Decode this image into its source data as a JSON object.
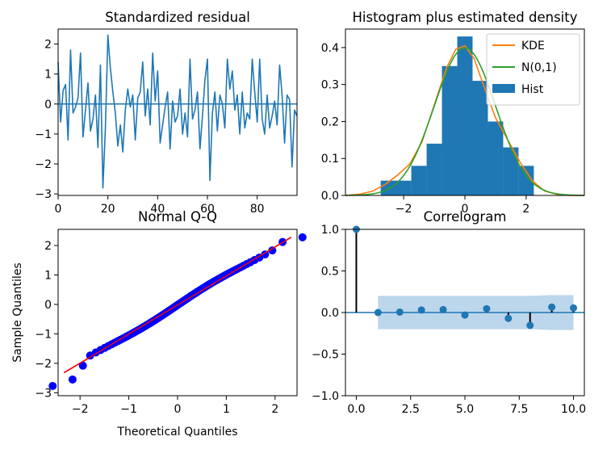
{
  "chart_data": [
    {
      "panel": "residual",
      "type": "line",
      "title": "Standardized residual",
      "xlim": [
        0,
        96
      ],
      "ylim": [
        -3.05,
        2.5
      ],
      "xticks": [
        0,
        20,
        40,
        60,
        80
      ],
      "yticks": [
        -3,
        -2,
        -1,
        0,
        1,
        2
      ],
      "xtick_labels": [
        "0",
        "20",
        "40",
        "60",
        "80"
      ],
      "ytick_labels": [
        "−3",
        "−2",
        "−1",
        "0",
        "1",
        "2"
      ],
      "hline": 0,
      "color": "#1f77b4",
      "values": [
        1.4,
        -0.6,
        0.45,
        0.65,
        -1.2,
        1.8,
        -0.3,
        -0.1,
        0.2,
        1.7,
        -1.1,
        -0.2,
        0.7,
        -0.9,
        -0.5,
        0.3,
        -1.45,
        1.3,
        -2.8,
        -0.8,
        2.3,
        1.2,
        0.4,
        -0.3,
        -1.4,
        -0.7,
        -1.6,
        -0.2,
        0.5,
        -0.1,
        0.3,
        -1.2,
        0.2,
        0.4,
        1.4,
        -0.4,
        0.5,
        -0.7,
        1.7,
        0.1,
        1.1,
        -1.3,
        -0.7,
        -0.1,
        0.4,
        -1.5,
        0.1,
        -0.6,
        -0.4,
        0.5,
        -1.0,
        -0.3,
        -1.1,
        1.5,
        -0.5,
        -0.2,
        0.4,
        -1.5,
        -0.4,
        0.8,
        1.5,
        -2.55,
        -0.3,
        0.4,
        -0.9,
        0.3,
        0.0,
        -0.8,
        1.5,
        0.5,
        1.1,
        -0.2,
        0.3,
        -1.0,
        0.4,
        -0.8,
        -0.3,
        -0.5,
        1.5,
        0.4,
        -0.6,
        1.5,
        -0.5,
        -1.0,
        0.3,
        -0.8,
        -0.4,
        0.1,
        -0.7,
        1.3,
        0.3,
        -1.3,
        0.3,
        0.15,
        -2.1,
        -0.2,
        -0.4
      ]
    },
    {
      "panel": "histogram",
      "type": "bar",
      "title": "Histogram plus estimated density",
      "xlim": [
        -3.9,
        3.9
      ],
      "ylim": [
        0,
        0.45
      ],
      "xticks": [
        -2,
        0,
        2
      ],
      "yticks": [
        0.0,
        0.1,
        0.2,
        0.3,
        0.4
      ],
      "xtick_labels": [
        "−2",
        "0",
        "2"
      ],
      "ytick_labels": [
        "0.0",
        "0.1",
        "0.2",
        "0.3",
        "0.4"
      ],
      "bin_edges": [
        -2.75,
        -1.75,
        -1.25,
        -0.75,
        -0.25,
        0.25,
        0.75,
        1.25,
        1.75,
        2.25
      ],
      "bin_heights": [
        0.04,
        0.08,
        0.14,
        0.35,
        0.43,
        0.31,
        0.2,
        0.13,
        0.08
      ],
      "legend": {
        "position": "top-right",
        "entries": [
          "KDE",
          "N(0,1)",
          "Hist"
        ]
      },
      "colors": {
        "hist": "#1f77b4",
        "kde": "#ff7f0e",
        "normal": "#2ca02c"
      },
      "kde": {
        "x": [
          -3.9,
          -3.4,
          -3.0,
          -2.6,
          -2.2,
          -1.8,
          -1.4,
          -1.0,
          -0.6,
          -0.3,
          0.0,
          0.3,
          0.6,
          1.0,
          1.4,
          1.8,
          2.2,
          2.6,
          3.0,
          3.4,
          3.9
        ],
        "y": [
          0.0,
          0.004,
          0.012,
          0.03,
          0.055,
          0.085,
          0.145,
          0.245,
          0.345,
          0.395,
          0.405,
          0.37,
          0.3,
          0.21,
          0.15,
          0.09,
          0.04,
          0.012,
          0.003,
          0.0,
          0.0
        ]
      }
    },
    {
      "panel": "qq",
      "type": "scatter",
      "title": "Normal Q-Q",
      "xlabel": "Theoretical Quantiles",
      "ylabel": "Sample Quantiles",
      "xlim": [
        -2.45,
        2.45
      ],
      "ylim": [
        -3.1,
        2.55
      ],
      "xticks": [
        -2,
        -1,
        0,
        1,
        2
      ],
      "yticks": [
        -3,
        -2,
        -1,
        0,
        1,
        2
      ],
      "xtick_labels": [
        "−2",
        "−1",
        "0",
        "1",
        "2"
      ],
      "ytick_labels": [
        "−3",
        "−2",
        "−1",
        "0",
        "1",
        "2"
      ],
      "point_color": "#0000ff",
      "line_color": "#ff0000",
      "reference_line": {
        "x": [
          -2.33,
          2.33
        ],
        "y": [
          -2.32,
          2.28
        ]
      }
    },
    {
      "panel": "correlogram",
      "type": "scatter",
      "title": "Correlogram",
      "xlim": [
        -0.5,
        10.5
      ],
      "ylim": [
        -1.0,
        1.0
      ],
      "xticks": [
        0,
        2.5,
        5,
        7.5,
        10
      ],
      "yticks": [
        -1.0,
        -0.5,
        0.0,
        0.5,
        1.0
      ],
      "xtick_labels": [
        "0.0",
        "2.5",
        "5.0",
        "7.5",
        "10.0"
      ],
      "ytick_labels": [
        "−1.0",
        "−0.5",
        "0.0",
        "0.5",
        "1.0"
      ],
      "lags": [
        0,
        1,
        2,
        3,
        4,
        5,
        6,
        7,
        8,
        9,
        10
      ],
      "acf": [
        1.0,
        0.0,
        0.005,
        0.03,
        0.035,
        -0.03,
        0.045,
        -0.07,
        -0.155,
        0.065,
        0.055
      ],
      "confint_x": [
        1,
        10
      ],
      "confint_upper": [
        0.2,
        0.2,
        0.2,
        0.2,
        0.2,
        0.2,
        0.2,
        0.2,
        0.21,
        0.21
      ],
      "confint_lower": [
        -0.2,
        -0.2,
        -0.2,
        -0.2,
        -0.2,
        -0.2,
        -0.2,
        -0.2,
        -0.21,
        -0.21
      ],
      "colors": {
        "marker": "#1f77b4",
        "band": "#a6c8e4",
        "stem": "#000000"
      }
    }
  ]
}
